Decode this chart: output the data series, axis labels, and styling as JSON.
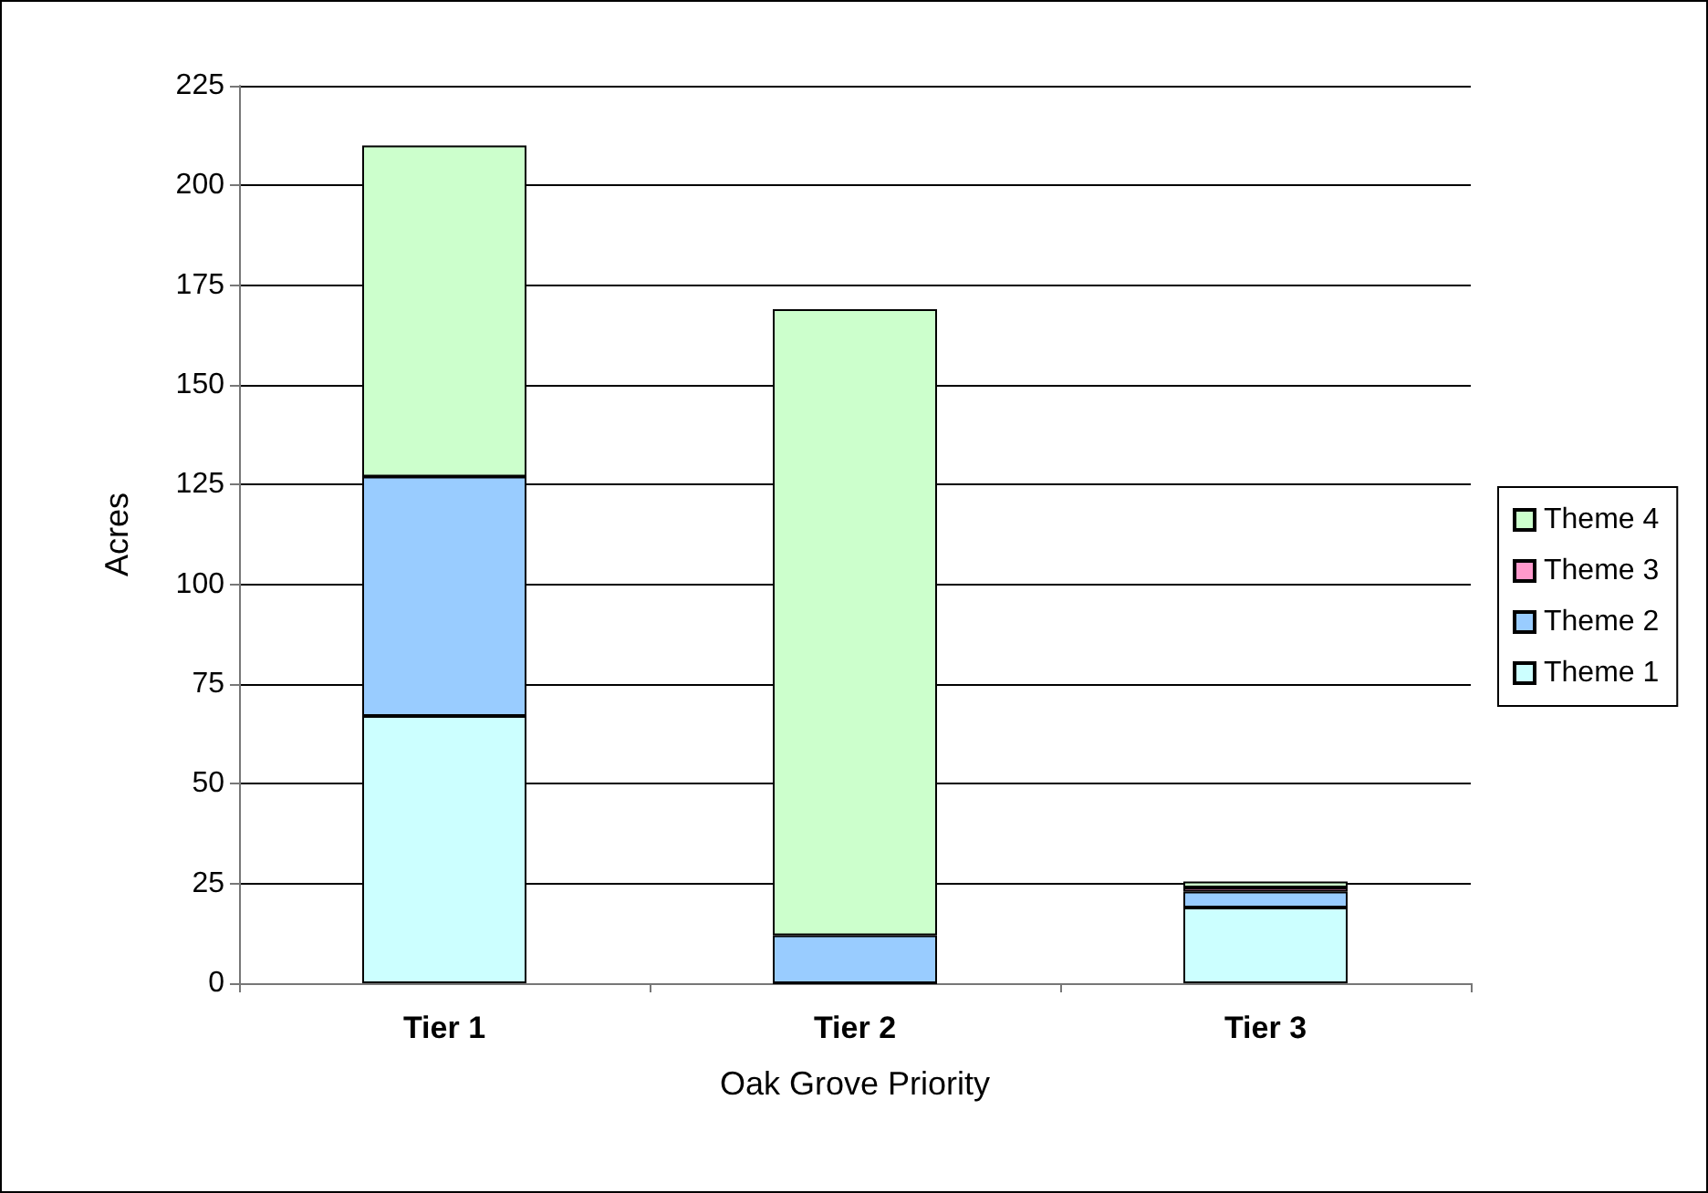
{
  "chart_data": {
    "type": "bar",
    "stacked": true,
    "xlabel": "Oak Grove Priority",
    "ylabel": "Acres",
    "categories": [
      "Tier 1",
      "Tier 2",
      "Tier 3"
    ],
    "series": [
      {
        "name": "Theme 1",
        "color": "#ccffff",
        "values": [
          67,
          0,
          19
        ]
      },
      {
        "name": "Theme 2",
        "color": "#99ccff",
        "values": [
          60,
          12,
          4
        ]
      },
      {
        "name": "Theme 3",
        "color": "#ff99cc",
        "values": [
          0,
          null,
          1
        ]
      },
      {
        "name": "Theme 4",
        "color": "#ccffcc",
        "values": [
          83,
          157,
          1.5
        ]
      }
    ],
    "ylim": [
      0,
      225
    ],
    "yticks": [
      0,
      25,
      50,
      75,
      100,
      125,
      150,
      175,
      200,
      225
    ],
    "grid": "y",
    "legend": "right"
  }
}
